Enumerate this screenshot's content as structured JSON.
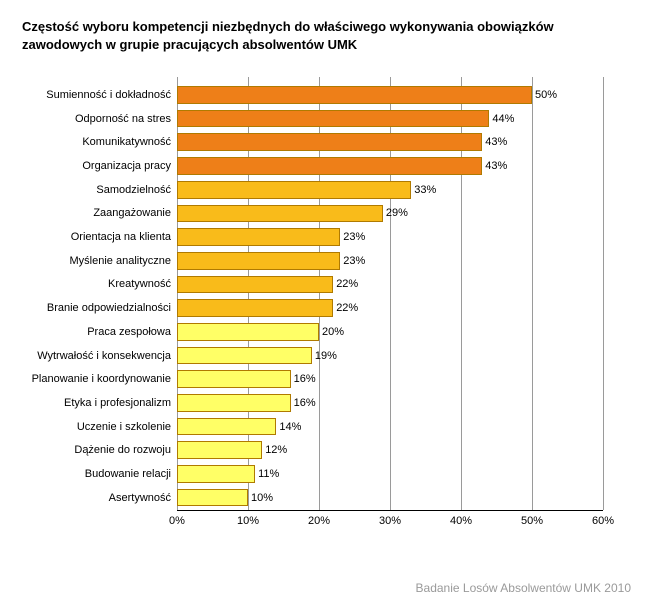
{
  "chart": {
    "type": "bar",
    "orientation": "horizontal",
    "title": "Częstość wyboru kompetencji niezbędnych do właściwego wykonywania obowiązków zawodowych w grupie pracujących absolwentów UMK",
    "title_fontsize": 13,
    "title_fontweight": "bold",
    "background_color": "#ffffff",
    "grid_color": "#9a9a9a",
    "axis_color": "#000000",
    "text_color": "#000000",
    "label_fontsize": 11,
    "value_fontsize": 11,
    "tick_fontsize": 11,
    "xmin": 0,
    "xmax": 60,
    "xtick_step": 10,
    "xtick_suffix": "%",
    "value_suffix": "%",
    "bar_border_color": "#b07a00",
    "bars": [
      {
        "label": "Sumienność i dokładność",
        "value": 50,
        "fill": "#ee7f18"
      },
      {
        "label": "Odporność na stres",
        "value": 44,
        "fill": "#ee7f18"
      },
      {
        "label": "Komunikatywność",
        "value": 43,
        "fill": "#ee7f18"
      },
      {
        "label": "Organizacja pracy",
        "value": 43,
        "fill": "#ee7f18"
      },
      {
        "label": "Samodzielność",
        "value": 33,
        "fill": "#f9bb1a"
      },
      {
        "label": "Zaangażowanie",
        "value": 29,
        "fill": "#f9bb1a"
      },
      {
        "label": "Orientacja na klienta",
        "value": 23,
        "fill": "#f9bb1a"
      },
      {
        "label": "Myślenie analityczne",
        "value": 23,
        "fill": "#f9bb1a"
      },
      {
        "label": "Kreatywność",
        "value": 22,
        "fill": "#f9bb1a"
      },
      {
        "label": "Branie odpowiedzialności",
        "value": 22,
        "fill": "#f9bb1a"
      },
      {
        "label": "Praca zespołowa",
        "value": 20,
        "fill": "#ffff66"
      },
      {
        "label": "Wytrwałość i konsekwencja",
        "value": 19,
        "fill": "#ffff66"
      },
      {
        "label": "Planowanie i koordynowanie",
        "value": 16,
        "fill": "#ffff66"
      },
      {
        "label": "Etyka i profesjonalizm",
        "value": 16,
        "fill": "#ffff66"
      },
      {
        "label": "Uczenie i szkolenie",
        "value": 14,
        "fill": "#ffff66"
      },
      {
        "label": "Dążenie do rozwoju",
        "value": 12,
        "fill": "#ffff66"
      },
      {
        "label": "Budowanie relacji",
        "value": 11,
        "fill": "#ffff66"
      },
      {
        "label": "Asertywność",
        "value": 10,
        "fill": "#ffff66"
      }
    ]
  },
  "footer": {
    "text": "Badanie Losów Absolwentów UMK 2010",
    "color": "#9a9a9a",
    "fontsize": 12
  }
}
